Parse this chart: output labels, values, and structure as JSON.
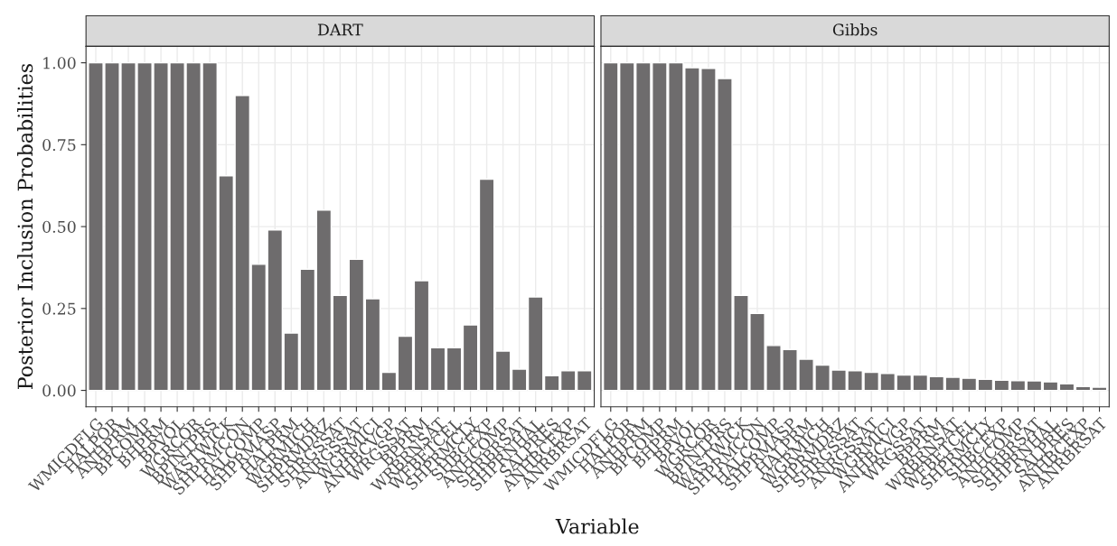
{
  "chart_data": [
    {
      "type": "bar",
      "title": "DART",
      "ylabel": "Posterior Inclusion Probabilities",
      "xlabel": "Variable",
      "color": "#6e6c6d",
      "ylim": [
        -0.05,
        1.05
      ],
      "yticks": [
        {
          "value": 0,
          "label": "0.00"
        },
        {
          "value": 0.25,
          "label": "0.25"
        },
        {
          "value": 0.5,
          "label": "0.50"
        },
        {
          "value": 0.75,
          "label": "0.75"
        },
        {
          "value": 1,
          "label": "1.00"
        }
      ],
      "grid": true,
      "categories": [
        "WMICDFLG",
        "HALPOR",
        "ANHPRM",
        "BPCOMP",
        "BHPRM",
        "BPVOL",
        "WGRCOR",
        "BPINTPRS",
        "WASTWICK",
        "SHPRMCON",
        "HALCOMP",
        "SHPRMASP",
        "HALPRM",
        "WGRMICH",
        "SHPRMDRZ",
        "SHRGSSAT",
        "ANRGSSAT",
        "WGRMICI",
        "ANHBCVGP",
        "WRGSSAT",
        "BPPRM",
        "WRBRNSAT",
        "WFBETCEL",
        "SHPRMCLY",
        "SHBCEXP",
        "ANHCOMP",
        "SHRBRSAT",
        "SHPRNHAL",
        "SALPRES",
        "ANHBCEXP",
        "ANRBRSAT"
      ],
      "values": [
        1,
        1,
        1,
        1,
        1,
        1,
        1,
        1,
        0.655,
        0.9,
        0.385,
        0.49,
        0.175,
        0.37,
        0.55,
        0.29,
        0.4,
        0.28,
        0.055,
        0.165,
        0.335,
        0.13,
        0.13,
        0.2,
        0.645,
        0.12,
        0.065,
        0.285,
        0.045,
        0.06,
        0.06
      ]
    },
    {
      "type": "bar",
      "title": "Gibbs",
      "color": "#6e6c6d",
      "ylim": [
        -0.05,
        1.05
      ],
      "yticks": [
        0,
        0.25,
        0.5,
        0.75,
        1
      ],
      "grid": true,
      "tick_labels": "x",
      "categories": [
        "WMICDFLG",
        "HALPOR",
        "ANHPRM",
        "BPCOMP",
        "BHPRM",
        "BPVOL",
        "WGRCOR",
        "BPINTPRS",
        "WASTWICK",
        "SHPRMCON",
        "HALCOMP",
        "SHPRMASP",
        "HALPRM",
        "WGRMICH",
        "SHPRMDRZ",
        "SHRGSSAT",
        "ANRGSSAT",
        "WGRMICI",
        "ANHBCVGP",
        "WRGSSAT",
        "BPPRM",
        "WRBRNSAT",
        "WFBETCEL",
        "SHPRMCLY",
        "SHBCEXP",
        "ANHCOMP",
        "SHRBRSAT",
        "SHPRNHAL",
        "SALPRES",
        "ANHBCEXP",
        "ANRBRSAT"
      ],
      "values": [
        1,
        1,
        1,
        1,
        1,
        0.985,
        0.983,
        0.952,
        0.29,
        0.235,
        0.137,
        0.125,
        0.095,
        0.077,
        0.062,
        0.06,
        0.055,
        0.052,
        0.047,
        0.047,
        0.042,
        0.04,
        0.037,
        0.034,
        0.031,
        0.03,
        0.029,
        0.026,
        0.02,
        0.012,
        0.01
      ]
    }
  ]
}
